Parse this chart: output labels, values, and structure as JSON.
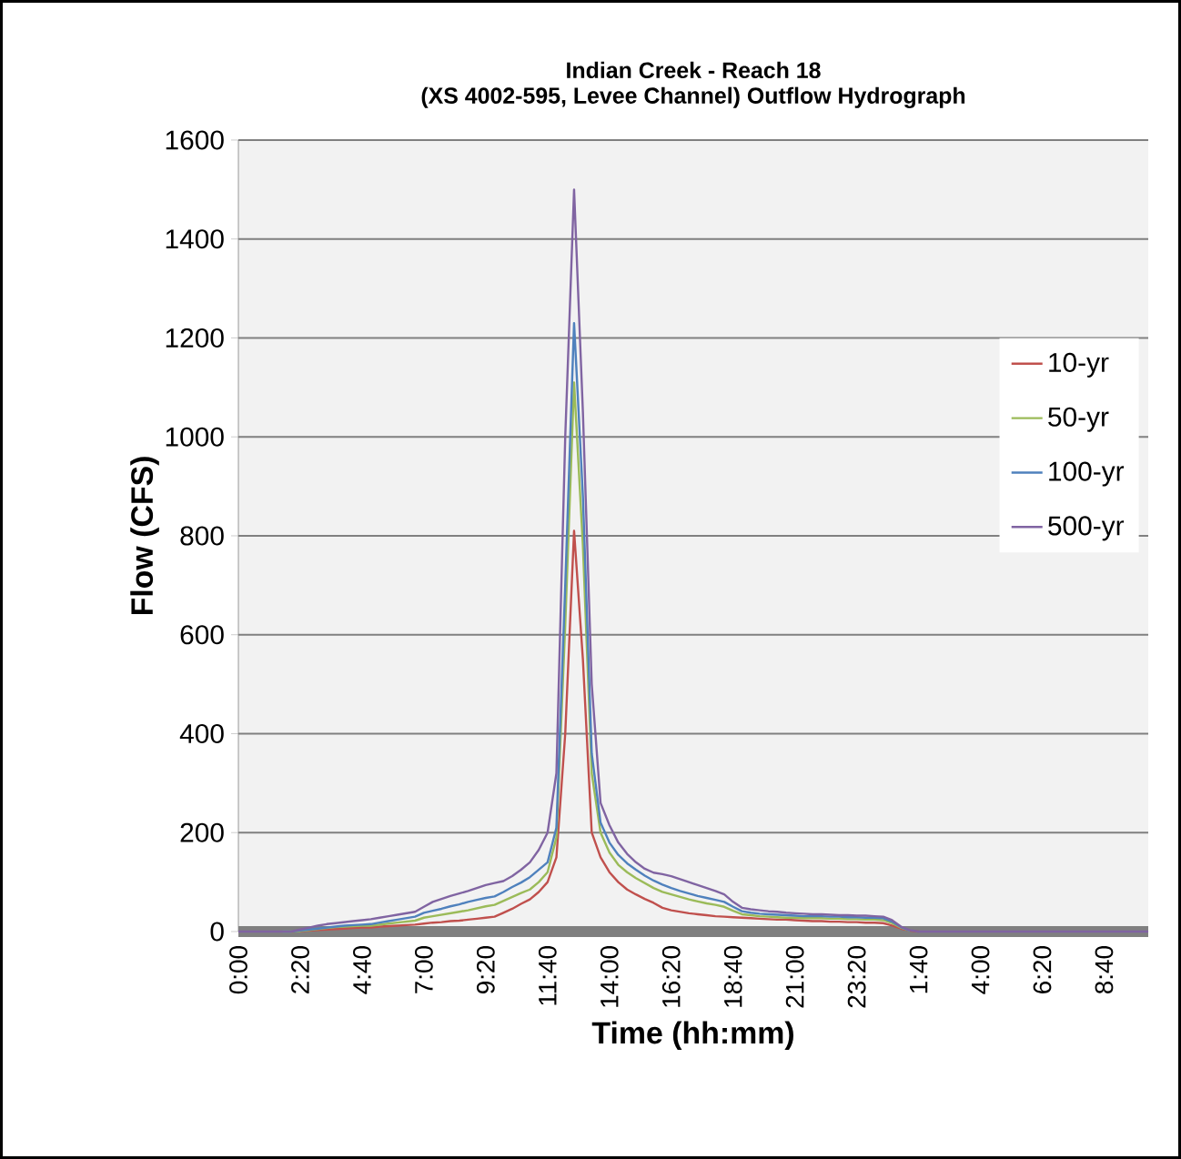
{
  "chart_data": {
    "type": "line",
    "title": "Indian Creek - Reach 18\n(XS 4002-595, Levee Channel) Outflow Hydrograph",
    "xlabel": "Time (hh:mm)",
    "ylabel": "Flow (CFS)",
    "categories": [
      "0:00",
      null,
      null,
      null,
      null,
      null,
      null,
      "2:20",
      null,
      null,
      null,
      null,
      null,
      null,
      "4:40",
      null,
      null,
      null,
      null,
      null,
      null,
      "7:00",
      null,
      null,
      null,
      null,
      null,
      null,
      "9:20",
      null,
      null,
      null,
      null,
      null,
      null,
      "11:40",
      null,
      null,
      null,
      null,
      null,
      null,
      "14:00",
      null,
      null,
      null,
      null,
      null,
      null,
      "16:20",
      null,
      null,
      null,
      null,
      null,
      null,
      "18:40",
      null,
      null,
      null,
      null,
      null,
      null,
      "21:00",
      null,
      null,
      null,
      null,
      null,
      null,
      "23:20",
      null,
      null,
      null,
      null,
      null,
      null,
      "1:40",
      null,
      null,
      null,
      null,
      null,
      null,
      "4:00",
      null,
      null,
      null,
      null,
      null,
      null,
      "6:20",
      null,
      null,
      null,
      null,
      null,
      null,
      "8:40",
      null,
      null,
      null,
      null,
      null
    ],
    "ylim": [
      0,
      1600
    ],
    "yticks": [
      0,
      200,
      400,
      600,
      800,
      1000,
      1200,
      1400,
      1600
    ],
    "grid": "y",
    "legend": "right",
    "marker": "none",
    "line_style": "solid",
    "series": [
      {
        "name": "10-yr",
        "color": "#c0504d",
        "values": [
          null,
          null,
          null,
          null,
          null,
          null,
          0,
          1,
          2,
          3,
          4,
          5,
          6,
          7,
          8,
          8,
          10,
          11,
          12,
          13,
          14,
          16,
          18,
          19,
          21,
          22,
          24,
          26,
          28,
          30,
          38,
          46,
          56,
          65,
          80,
          100,
          150,
          400,
          810,
          550,
          200,
          150,
          120,
          100,
          85,
          75,
          66,
          58,
          48,
          43,
          40,
          37,
          35,
          33,
          31,
          30,
          29,
          28,
          27,
          26,
          25,
          24,
          24,
          23,
          22,
          21,
          21,
          20,
          20,
          19,
          19,
          18,
          18,
          17,
          12,
          6,
          2,
          0,
          null,
          null,
          null,
          null,
          null,
          null,
          null,
          null,
          null,
          null,
          null,
          null,
          null,
          null,
          null,
          null,
          null,
          null,
          null,
          null,
          null,
          null,
          null,
          null,
          null,
          null
        ]
      },
      {
        "name": "50-yr",
        "color": "#9bbb59",
        "values": [
          null,
          null,
          null,
          null,
          null,
          0,
          0,
          1,
          3,
          5,
          7,
          9,
          10,
          11,
          12,
          12,
          14,
          16,
          18,
          20,
          22,
          28,
          31,
          34,
          37,
          40,
          43,
          47,
          51,
          54,
          62,
          70,
          78,
          85,
          100,
          120,
          190,
          620,
          1110,
          780,
          320,
          200,
          160,
          135,
          120,
          108,
          98,
          88,
          80,
          75,
          70,
          65,
          61,
          57,
          54,
          50,
          42,
          35,
          33,
          31,
          30,
          29,
          28,
          28,
          27,
          27,
          27,
          26,
          26,
          25,
          25,
          24,
          24,
          23,
          17,
          8,
          2,
          null,
          null,
          null,
          null,
          null,
          null,
          null,
          null,
          null,
          null,
          null,
          null,
          null,
          null,
          null,
          null,
          null,
          null,
          null,
          null,
          null,
          null,
          null,
          null,
          null,
          null,
          null
        ]
      },
      {
        "name": "100-yr",
        "color": "#4f81bd",
        "values": [
          null,
          null,
          null,
          null,
          null,
          0,
          0,
          2,
          4,
          6,
          8,
          10,
          12,
          13,
          14,
          15,
          18,
          21,
          24,
          27,
          30,
          38,
          42,
          46,
          51,
          55,
          60,
          64,
          68,
          71,
          80,
          90,
          99,
          110,
          125,
          140,
          210,
          700,
          1230,
          880,
          360,
          220,
          180,
          155,
          138,
          125,
          113,
          103,
          95,
          88,
          82,
          77,
          72,
          68,
          64,
          60,
          50,
          41,
          38,
          36,
          35,
          34,
          33,
          32,
          31,
          31,
          31,
          30,
          30,
          29,
          29,
          28,
          28,
          27,
          20,
          9,
          2,
          null,
          null,
          null,
          null,
          null,
          null,
          null,
          null,
          null,
          null,
          null,
          null,
          null,
          null,
          null,
          null,
          null,
          null,
          null,
          null,
          null,
          null,
          null,
          null,
          null,
          null,
          null
        ]
      },
      {
        "name": "500-yr",
        "color": "#8064a2",
        "values": [
          0,
          0,
          0,
          0,
          0,
          0,
          0,
          4,
          8,
          12,
          15,
          17,
          19,
          21,
          23,
          25,
          28,
          31,
          34,
          37,
          40,
          50,
          60,
          66,
          72,
          77,
          82,
          88,
          94,
          98,
          102,
          112,
          125,
          140,
          165,
          200,
          320,
          1000,
          1500,
          1050,
          500,
          260,
          215,
          180,
          157,
          140,
          127,
          119,
          116,
          112,
          106,
          100,
          94,
          88,
          82,
          75,
          60,
          48,
          45,
          43,
          41,
          40,
          38,
          37,
          36,
          35,
          35,
          34,
          33,
          33,
          32,
          32,
          31,
          30,
          23,
          10,
          3,
          0,
          0,
          0,
          0,
          0,
          0,
          0,
          0,
          0,
          0,
          0,
          0,
          0,
          0,
          0,
          0,
          0,
          0,
          0,
          0,
          0,
          0,
          0,
          0,
          0,
          0,
          0
        ]
      }
    ]
  }
}
